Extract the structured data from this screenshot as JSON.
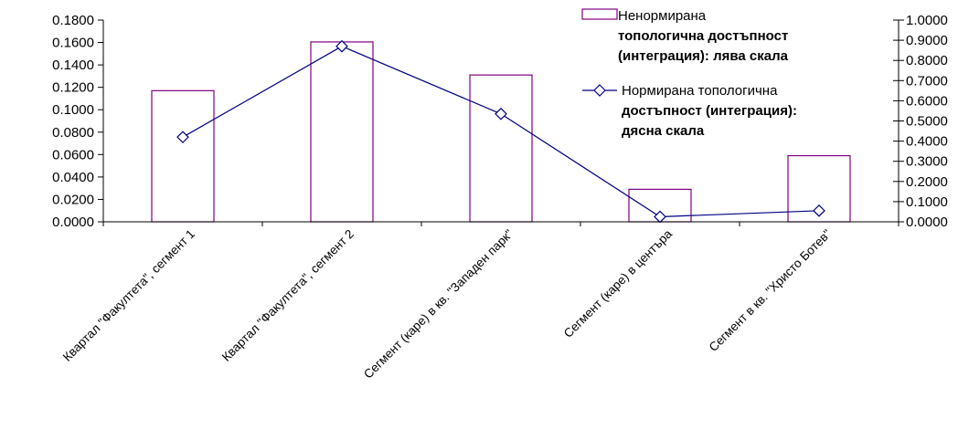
{
  "chart_data": {
    "type": "bar",
    "categories": [
      "Квартал \"Факултета\", сегмент 1",
      "Квартал \"Факултета\", сегмент 2",
      "Сегмент (каре) в кв. \"Западен парк\"",
      "Сегмент (каре) в центъра",
      "Сегмент в кв. \"Христо Ботев\""
    ],
    "series": [
      {
        "name": "Ненормирана топологична достъпност (интеграция): лява скала",
        "type": "bar",
        "axis": "left",
        "color": "#800080",
        "values": [
          0.117,
          0.1605,
          0.131,
          0.029,
          0.059
        ]
      },
      {
        "name": "Нормирана топологична достъпност (интеграция): дясна скала",
        "type": "line",
        "axis": "right",
        "color": "#000080",
        "values": [
          0.42,
          0.87,
          0.535,
          0.025,
          0.055
        ]
      }
    ],
    "left_axis": {
      "ylim": [
        0,
        0.18
      ],
      "ticks": [
        "0.0000",
        "0.0200",
        "0.0400",
        "0.0600",
        "0.0800",
        "0.1000",
        "0.1200",
        "0.1400",
        "0.1600",
        "0.1800"
      ]
    },
    "right_axis": {
      "ylim": [
        0,
        1.0
      ],
      "ticks": [
        "0.0000",
        "0.1000",
        "0.2000",
        "0.3000",
        "0.4000",
        "0.5000",
        "0.6000",
        "0.7000",
        "0.8000",
        "0.9000",
        "1.0000"
      ]
    },
    "legend": {
      "placement": "top-right",
      "items": [
        {
          "lines": [
            {
              "text": "Ненормирана",
              "bold": false
            },
            {
              "text": "топологична достъпност",
              "bold": true
            },
            {
              "text": "(интеграция): лява скала",
              "bold": true
            }
          ]
        },
        {
          "lines": [
            {
              "text": "Нормирана топологична",
              "bold": false
            },
            {
              "text": "достъпност (интеграция):",
              "bold": true
            },
            {
              "text": "дясна скала",
              "bold": true
            }
          ]
        }
      ]
    },
    "grid": false
  }
}
